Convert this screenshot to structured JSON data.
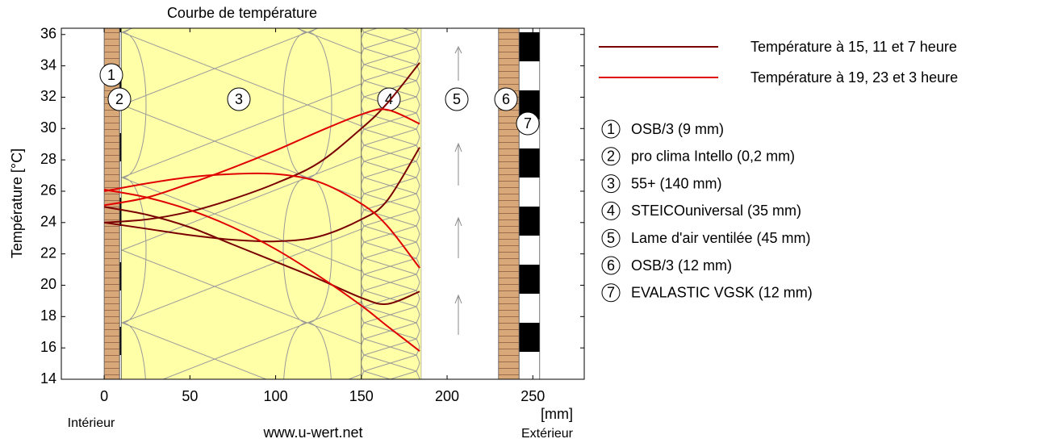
{
  "chart_data": {
    "type": "line",
    "title": "Courbe de température",
    "ylabel": "Température [°C]",
    "xlabel": "[mm]",
    "left_label": "Intérieur",
    "right_label": "Extérieur",
    "source": "www.u-wert.net",
    "xlim": [
      -25,
      280
    ],
    "ylim": [
      14,
      36.4
    ],
    "xticks": [
      0,
      50,
      100,
      150,
      200,
      250
    ],
    "yticks": [
      14,
      16,
      18,
      20,
      22,
      24,
      26,
      28,
      30,
      32,
      34,
      36
    ],
    "layers": [
      {
        "num": "1",
        "name": "OSB/3 (9 mm)",
        "x0": 0,
        "x1": 9,
        "fill": "osb"
      },
      {
        "num": "2",
        "name": "pro clima Intello (0,2 mm)",
        "x0": 9,
        "x1": 10,
        "fill": "membrane"
      },
      {
        "num": "3",
        "name": "55+ (140 mm)",
        "x0": 10,
        "x1": 150,
        "fill": "insulation"
      },
      {
        "num": "4",
        "name": "STEICOuniversal (35 mm)",
        "x0": 150,
        "x1": 185,
        "fill": "fibre"
      },
      {
        "num": "5",
        "name": "Lame d'air ventilée (45 mm)",
        "x0": 185,
        "x1": 230,
        "fill": "air"
      },
      {
        "num": "6",
        "name": "OSB/3 (12 mm)",
        "x0": 230,
        "x1": 242,
        "fill": "osb"
      },
      {
        "num": "7",
        "name": "EVALASTIC VGSK (12 mm)",
        "x0": 242,
        "x1": 254,
        "fill": "checker"
      }
    ],
    "series": [
      {
        "name": "Température à 15, 11 et 7 heure",
        "color": "#7a0000",
        "curves": [
          {
            "x": [
              0,
              25,
              50,
              75,
              100,
              125,
              150,
              165,
              184
            ],
            "values": [
              24,
              24.2,
              24.7,
              25.5,
              26.5,
              27.8,
              30,
              31.6,
              34.2
            ]
          },
          {
            "x": [
              0,
              25,
              50,
              75,
              100,
              125,
              150,
              165,
              184
            ],
            "values": [
              24,
              23.6,
              23.2,
              22.9,
              22.8,
              23.1,
              24.2,
              25.4,
              28.8
            ]
          },
          {
            "x": [
              0,
              25,
              50,
              75,
              100,
              125,
              150,
              165,
              184
            ],
            "values": [
              25,
              24.5,
              23.7,
              22.6,
              21.5,
              20.4,
              19.2,
              18.8,
              19.6
            ]
          }
        ]
      },
      {
        "name": "Température à 19, 23 et 3 heure",
        "color": "#e00000",
        "curves": [
          {
            "x": [
              0,
              25,
              50,
              75,
              100,
              125,
              150,
              165,
              184
            ],
            "values": [
              25.1,
              25.6,
              26.5,
              27.5,
              28.6,
              29.8,
              30.9,
              31.2,
              30.3
            ]
          },
          {
            "x": [
              0,
              25,
              50,
              75,
              100,
              125,
              150,
              165,
              184
            ],
            "values": [
              26,
              26.5,
              26.9,
              27.1,
              27.1,
              26.6,
              25.2,
              23.8,
              21.1
            ]
          },
          {
            "x": [
              0,
              25,
              50,
              75,
              100,
              125,
              150,
              165,
              184
            ],
            "values": [
              26.1,
              25.6,
              24.8,
              23.7,
              22.3,
              20.6,
              18.7,
              17.4,
              15.8
            ]
          }
        ]
      }
    ]
  }
}
